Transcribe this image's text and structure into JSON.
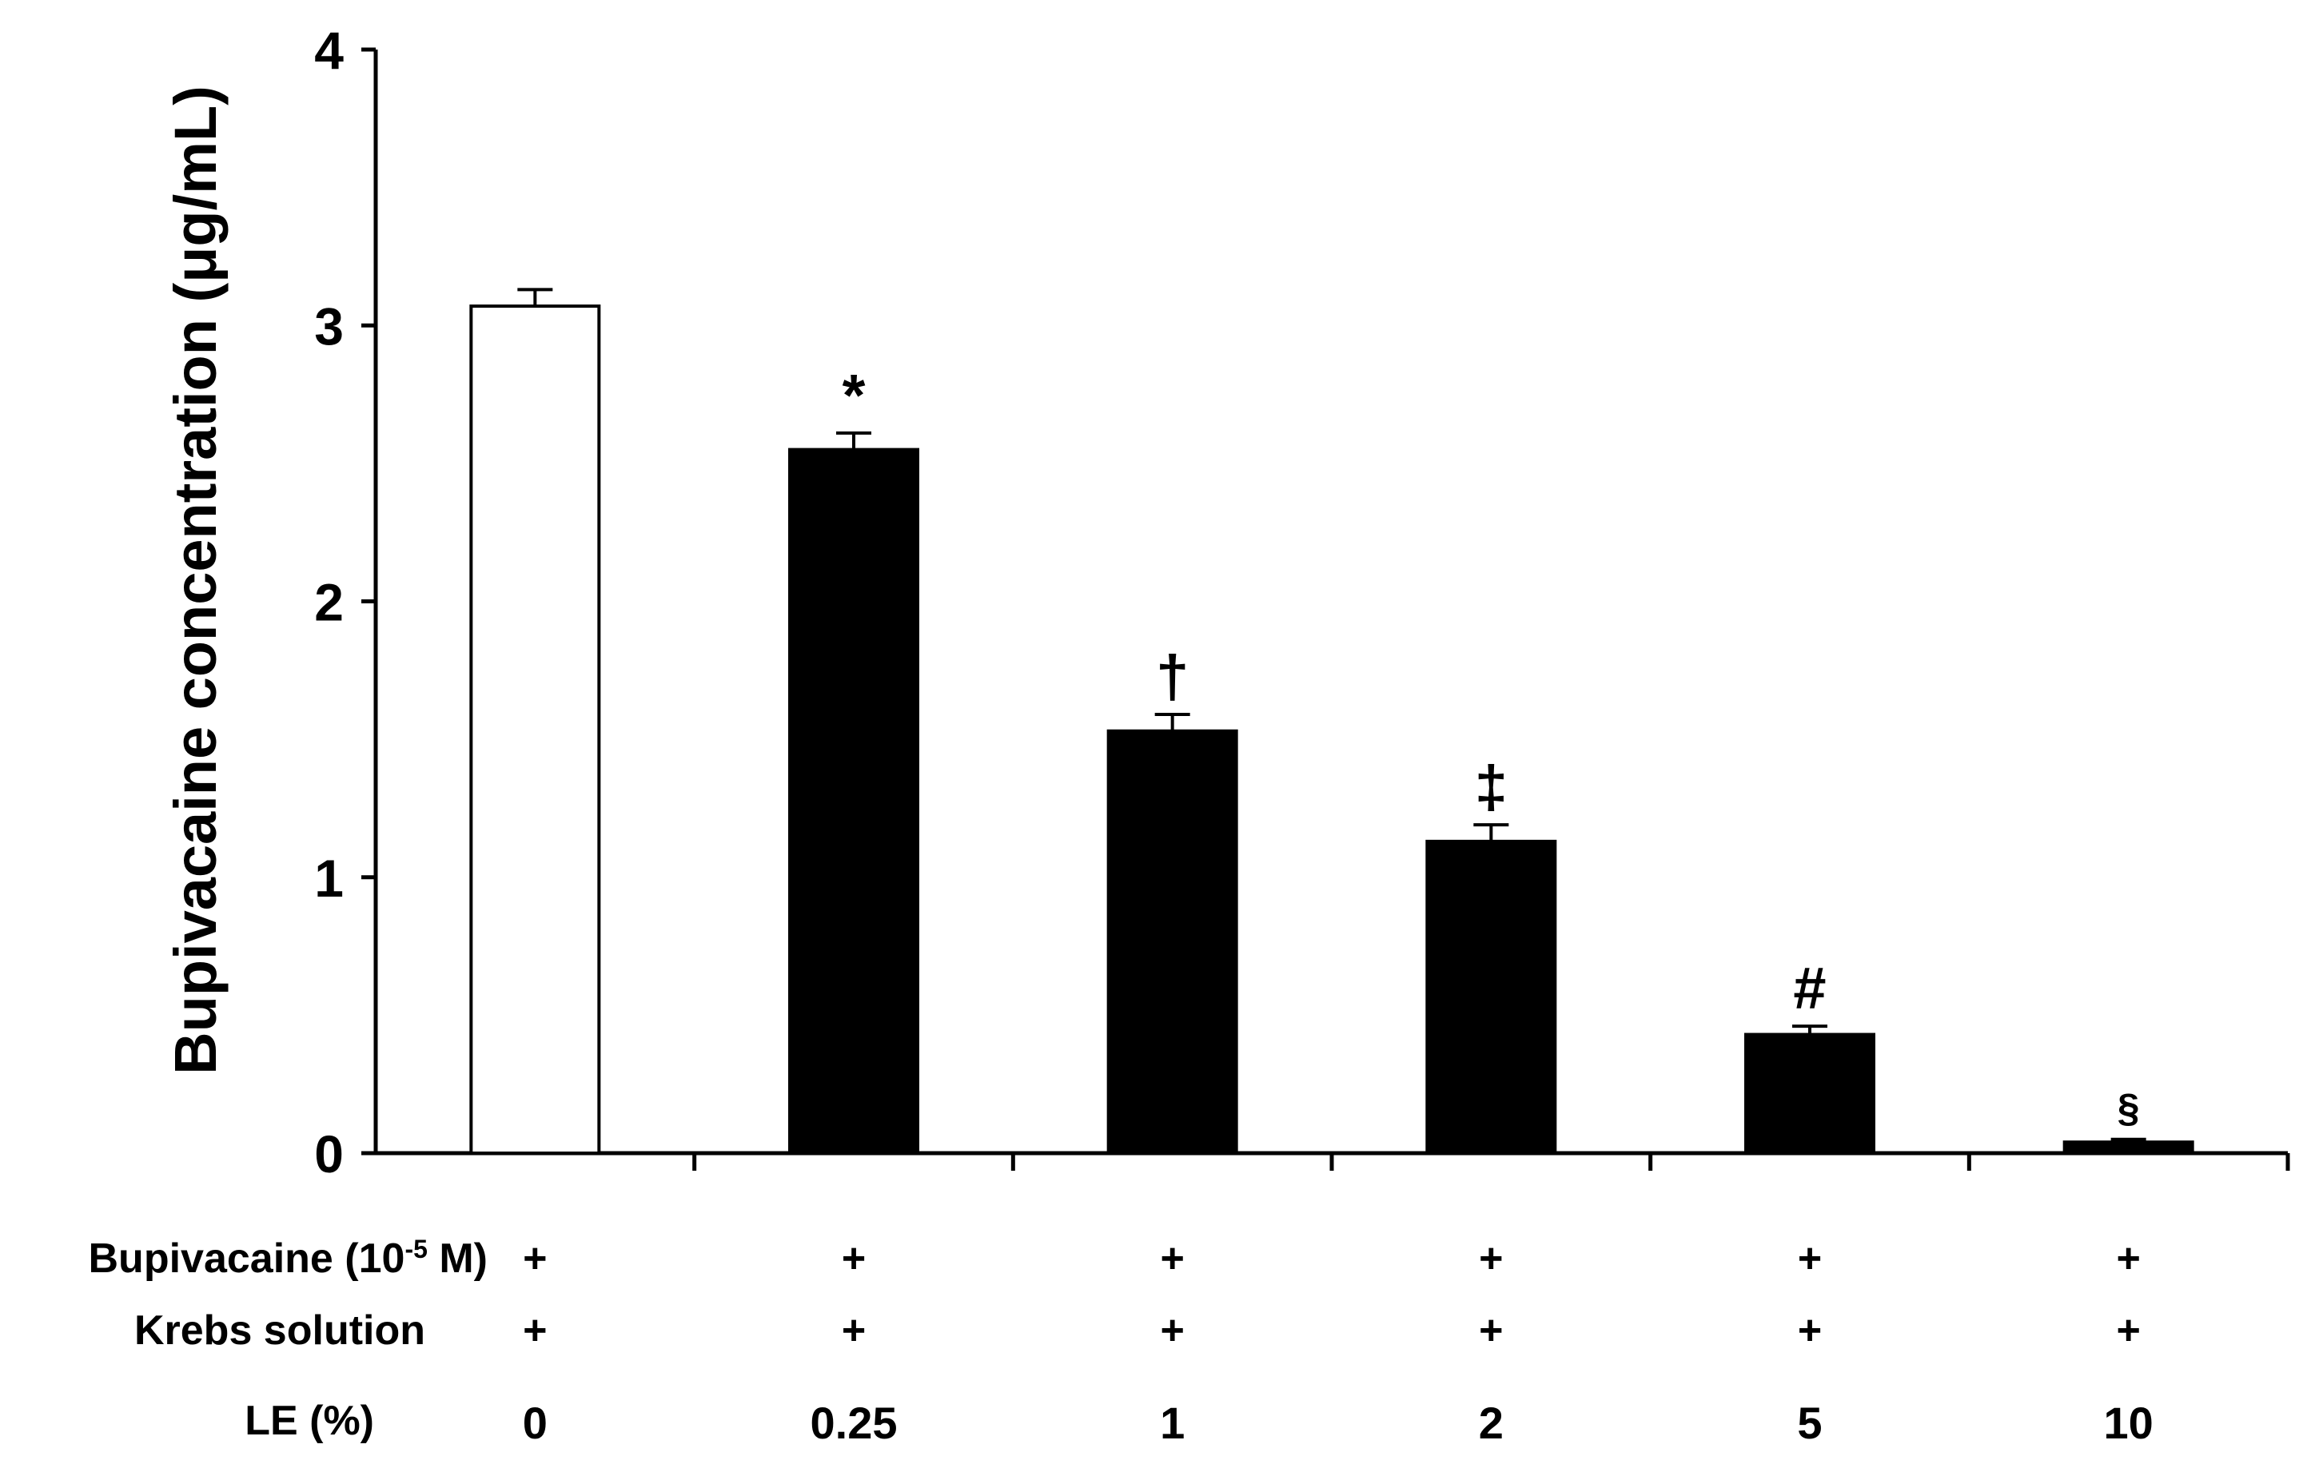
{
  "chart_data": {
    "type": "bar",
    "ylabel": "Bupivacaine concentration (μg/mL)",
    "ylim": [
      0,
      4
    ],
    "yticks": [
      "0",
      "1",
      "2",
      "3",
      "4"
    ],
    "grid": false,
    "values": [
      3.07,
      2.55,
      1.53,
      1.13,
      0.43,
      0.04
    ],
    "errors": [
      0.06,
      0.06,
      0.06,
      0.06,
      0.03,
      0.01
    ],
    "significance": [
      "",
      "*",
      "†",
      "‡",
      "#",
      "§"
    ],
    "bar_colors": [
      "#ffffff",
      "#000000",
      "#000000",
      "#000000",
      "#000000",
      "#000000"
    ],
    "row_labels": {
      "bupivacaine_prefix": "Bupivacaine (10",
      "bupivacaine_exponent": "-5",
      "bupivacaine_suffix": " M)",
      "krebs": "Krebs solution",
      "le": "LE (%)"
    },
    "bupivacaine_row": [
      "+",
      "+",
      "+",
      "+",
      "+",
      "+"
    ],
    "krebs_row": [
      "+",
      "+",
      "+",
      "+",
      "+",
      "+"
    ],
    "le_row": [
      "0",
      "0.25",
      "1",
      "2",
      "5",
      "10"
    ]
  }
}
